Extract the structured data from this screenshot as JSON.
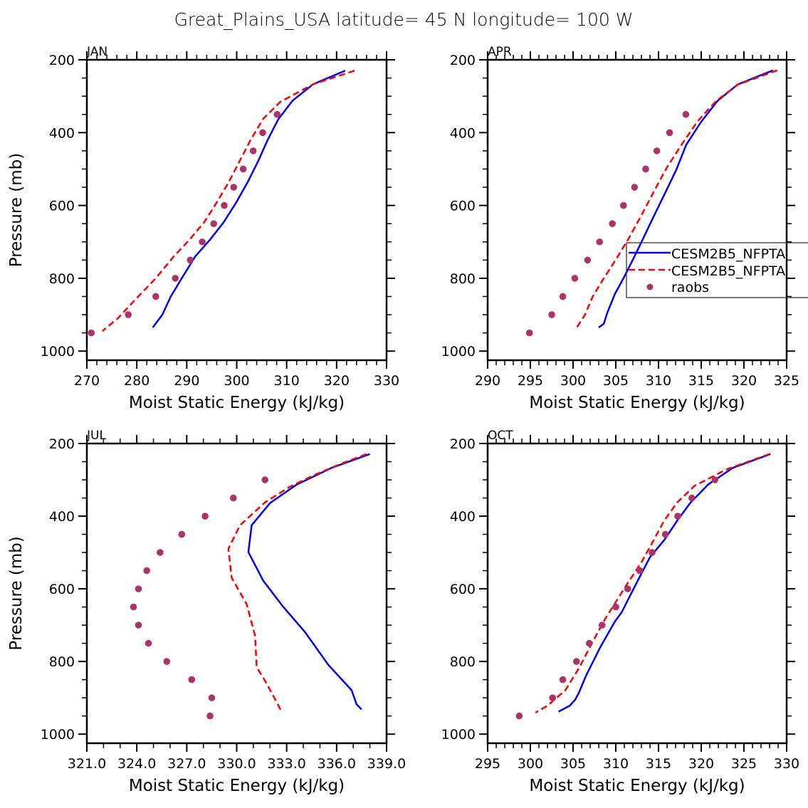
{
  "title": "Great_Plains_USA  latitude= 45 N longitude= 100 W",
  "colors": {
    "model1": "#0000ff",
    "model2": "#ff0000",
    "raobs": "#ad3366",
    "axis": "#000000"
  },
  "legend": {
    "placement": "APR panel, right side (overlapping, clipped at page edge)",
    "entries": [
      {
        "label": "CESM2B5_NFPTA",
        "style": "solid",
        "series": "model1"
      },
      {
        "label": "CESM2B5_NFPTA",
        "style": "dashed",
        "series": "model2"
      },
      {
        "label": "raobs",
        "style": "marker",
        "series": "raobs"
      }
    ]
  },
  "chart_data": [
    {
      "type": "line",
      "panel": "JAN",
      "title": "JAN",
      "xlabel": "Moist Static Energy (kJ/kg)",
      "ylabel": "Pressure (mb)",
      "xlim": [
        270,
        330
      ],
      "ylim": [
        1025,
        200
      ],
      "xticks": [
        270,
        280,
        290,
        300,
        310,
        320,
        330
      ],
      "xtick_labels": [
        "270",
        "280",
        "290",
        "300",
        "310",
        "320",
        "330"
      ],
      "x_minor": 2,
      "yticks": [
        200,
        400,
        600,
        800,
        1000
      ],
      "ytick_labels": [
        "200",
        "400",
        "600",
        "800",
        "1000"
      ],
      "show_ylabel": true,
      "series": [
        {
          "name": "CESM2B5_NFPTA",
          "key": "model1",
          "style": "solid",
          "x": [
            321.7,
            315.3,
            311.2,
            308.3,
            306.2,
            304.3,
            302.2,
            299.9,
            297.4,
            294.6,
            291.7,
            289.0,
            286.8,
            285.1,
            283.2
          ],
          "p": [
            230,
            267,
            312,
            364,
            420,
            478,
            536,
            592,
            646,
            695,
            740,
            800,
            850,
            900,
            935
          ]
        },
        {
          "name": "CESM2B5_NFPTA",
          "key": "model2",
          "style": "dashed",
          "x": [
            323.6,
            315.3,
            308.7,
            305.3,
            302.8,
            300.6,
            298.4,
            296.0,
            293.5,
            290.5,
            287.4,
            283.8,
            279.6,
            276.2,
            273.1
          ],
          "p": [
            230,
            267,
            316,
            362,
            420,
            478,
            536,
            592,
            646,
            695,
            740,
            800,
            860,
            910,
            945
          ]
        },
        {
          "name": "raobs",
          "key": "raobs",
          "style": "marker",
          "x": [
            308.1,
            305.2,
            303.3,
            301.3,
            299.4,
            297.5,
            295.4,
            293.1,
            290.7,
            287.7,
            283.8,
            278.3,
            270.9
          ],
          "p": [
            350,
            400,
            450,
            500,
            550,
            600,
            650,
            700,
            750,
            800,
            850,
            900,
            950
          ]
        }
      ]
    },
    {
      "type": "line",
      "panel": "APR",
      "title": "APR",
      "xlabel": "Moist Static Energy (kJ/kg)",
      "ylabel": "",
      "xlim": [
        290,
        325
      ],
      "ylim": [
        1025,
        200
      ],
      "xticks": [
        290,
        295,
        300,
        305,
        310,
        315,
        320,
        325
      ],
      "xtick_labels": [
        "290",
        "295",
        "300",
        "305",
        "310",
        "315",
        "320",
        "325"
      ],
      "x_minor": 1,
      "yticks": [
        200,
        400,
        600,
        800,
        1000
      ],
      "ytick_labels": [
        "200",
        "400",
        "600",
        "800",
        "1000"
      ],
      "show_ylabel": false,
      "series": [
        {
          "name": "CESM2B5_NFPTA",
          "key": "model1",
          "style": "solid",
          "x": [
            323.4,
            319.25,
            316.9,
            315.0,
            313.25,
            312.1,
            310.9,
            309.5,
            308.2,
            307.0,
            305.9,
            304.9,
            304.0,
            303.6,
            303.0
          ],
          "p": [
            229,
            268,
            313,
            370,
            433,
            501,
            560,
            627,
            691,
            749,
            800,
            843,
            895,
            925,
            935
          ]
        },
        {
          "name": "CESM2B5_NFPTA",
          "key": "model2",
          "style": "dashed",
          "x": [
            323.9,
            319.3,
            316.8,
            314.6,
            312.8,
            311.0,
            309.5,
            308.0,
            306.5,
            305.0,
            303.6,
            302.3,
            301.4,
            300.3
          ],
          "p": [
            229,
            268,
            312,
            368,
            430,
            495,
            560,
            627,
            691,
            749,
            800,
            850,
            900,
            940
          ]
        },
        {
          "name": "raobs",
          "key": "raobs",
          "style": "marker",
          "x": [
            313.2,
            311.3,
            309.8,
            308.5,
            307.2,
            305.9,
            304.6,
            303.1,
            301.7,
            300.2,
            298.8,
            297.5,
            294.9
          ],
          "p": [
            350,
            400,
            450,
            500,
            550,
            600,
            650,
            700,
            750,
            800,
            850,
            900,
            950
          ]
        }
      ]
    },
    {
      "type": "line",
      "panel": "JUL",
      "title": "JUL",
      "xlabel": "Moist Static Energy (kJ/kg)",
      "ylabel": "Pressure (mb)",
      "xlim": [
        321.0,
        339.0
      ],
      "ylim": [
        1025,
        200
      ],
      "xticks": [
        321,
        324,
        327,
        330,
        333,
        336,
        339
      ],
      "xtick_labels": [
        "321.0",
        "324.0",
        "327.0",
        "330.0",
        "333.0",
        "336.0",
        "339.0"
      ],
      "x_minor": 1,
      "yticks": [
        200,
        400,
        600,
        800,
        1000
      ],
      "ytick_labels": [
        "200",
        "400",
        "600",
        "800",
        "1000"
      ],
      "show_ylabel": true,
      "series": [
        {
          "name": "CESM2B5_NFPTA",
          "key": "model1",
          "style": "solid",
          "x": [
            338.0,
            335.7,
            333.6,
            332.0,
            330.9,
            330.7,
            331.6,
            332.8,
            334.1,
            335.5,
            336.9,
            337.2,
            337.5
          ],
          "p": [
            229,
            267,
            313,
            364,
            425,
            499,
            578,
            650,
            719,
            809,
            879,
            918,
            932
          ]
        },
        {
          "name": "CESM2B5_NFPTA",
          "key": "model2",
          "style": "dashed",
          "x": [
            337.8,
            336.2,
            334.6,
            333.2,
            331.7,
            330.2,
            329.5,
            329.7,
            330.6,
            331.1,
            331.2,
            331.7,
            332.2,
            332.7
          ],
          "p": [
            229,
            257,
            288,
            319,
            362,
            425,
            490,
            570,
            642,
            728,
            816,
            853,
            895,
            938
          ]
        },
        {
          "name": "raobs",
          "key": "raobs",
          "style": "marker",
          "x": [
            331.7,
            329.8,
            328.1,
            326.7,
            325.4,
            324.6,
            324.1,
            323.8,
            324.1,
            324.7,
            325.8,
            327.3,
            328.5,
            328.4
          ],
          "p": [
            300,
            350,
            400,
            450,
            500,
            550,
            600,
            650,
            700,
            750,
            800,
            850,
            900,
            950
          ]
        }
      ]
    },
    {
      "type": "line",
      "panel": "OCT",
      "title": "OCT",
      "xlabel": "Moist Static Energy (kJ/kg)",
      "ylabel": "",
      "xlim": [
        295,
        330
      ],
      "ylim": [
        1025,
        200
      ],
      "xticks": [
        295,
        300,
        305,
        310,
        315,
        320,
        325,
        330
      ],
      "xtick_labels": [
        "295",
        "300",
        "305",
        "310",
        "315",
        "320",
        "325",
        "330"
      ],
      "x_minor": 1,
      "yticks": [
        200,
        400,
        600,
        800,
        1000
      ],
      "ytick_labels": [
        "200",
        "400",
        "600",
        "800",
        "1000"
      ],
      "show_ylabel": false,
      "series": [
        {
          "name": "CESM2B5_NFPTA",
          "key": "model1",
          "style": "solid",
          "x": [
            328.1,
            323.7,
            320.8,
            318.7,
            317.2,
            315.7,
            314.0,
            312.3,
            310.7,
            309.9,
            308.2,
            306.5,
            305.7,
            305.25,
            304.6,
            303.3
          ],
          "p": [
            229,
            267,
            313,
            364,
            412,
            465,
            513,
            590,
            664,
            690,
            760,
            840,
            885,
            905,
            922,
            938
          ]
        },
        {
          "name": "CESM2B5_NFPTA",
          "key": "model2",
          "style": "dashed",
          "x": [
            328.0,
            322.9,
            319.2,
            317.2,
            315.7,
            314.3,
            313.0,
            311.1,
            308.75,
            307.2,
            305.75,
            304.1,
            302.0,
            300.6
          ],
          "p": [
            229,
            272,
            317,
            362,
            411,
            472,
            527,
            595,
            683,
            750,
            816,
            879,
            922,
            941
          ]
        },
        {
          "name": "raobs",
          "key": "raobs",
          "style": "marker",
          "x": [
            321.6,
            318.9,
            317.25,
            315.8,
            314.25,
            312.8,
            311.4,
            310.0,
            308.4,
            306.9,
            305.4,
            303.8,
            302.6,
            298.7
          ],
          "p": [
            300,
            350,
            400,
            450,
            500,
            550,
            600,
            650,
            700,
            750,
            800,
            850,
            900,
            950
          ]
        }
      ]
    }
  ]
}
